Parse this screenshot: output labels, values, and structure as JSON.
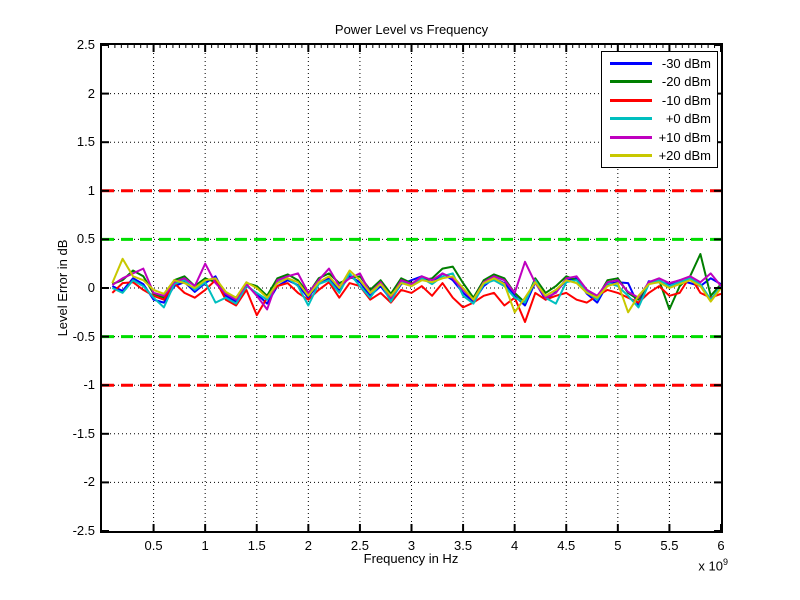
{
  "figure": {
    "title": "Power Level vs Frequency",
    "xlabel": "Frequency in Hz",
    "ylabel": "Level Error in dB",
    "x_exponent_prefix": "x 10",
    "x_exponent_power": "9",
    "background": "#ffffff",
    "axis_color": "#000000",
    "grid_style": "dotted"
  },
  "chart_data": {
    "type": "line",
    "title": "Power Level vs Frequency",
    "xlabel": "Frequency in Hz",
    "ylabel": "Level Error in dB",
    "x_unit": "Hz",
    "x_scale_exponent": 9,
    "xlim_ghz": [
      0,
      6
    ],
    "ylim_db": [
      -2.5,
      2.5
    ],
    "grid": "on-dotted",
    "legend_position": "northeast",
    "xticks_ghz": [
      0.5,
      1,
      1.5,
      2,
      2.5,
      3,
      3.5,
      4,
      4.5,
      5,
      5.5,
      6
    ],
    "xtick_labels": [
      "0.5",
      "1",
      "1.5",
      "2",
      "2.5",
      "3",
      "3.5",
      "4",
      "4.5",
      "5",
      "5.5",
      "6"
    ],
    "yticks_db": [
      2.5,
      2,
      1.5,
      1,
      0.5,
      0,
      -0.5,
      -1,
      -1.5,
      -2,
      -2.5
    ],
    "ytick_labels": [
      "2.5",
      "2",
      "1.5",
      "1",
      "0.5",
      "0",
      "-0.5",
      "-1",
      "-1.5",
      "-2",
      "-2.5"
    ],
    "limit_lines": [
      {
        "name": "upper-fail-limit",
        "y_db": 1.0,
        "color": "#ff0000",
        "style": "dashed"
      },
      {
        "name": "upper-warn-limit",
        "y_db": 0.5,
        "color": "#00dd00",
        "style": "dashed"
      },
      {
        "name": "lower-warn-limit",
        "y_db": -0.5,
        "color": "#00dd00",
        "style": "dashed"
      },
      {
        "name": "lower-fail-limit",
        "y_db": -1.0,
        "color": "#ff0000",
        "style": "dashed"
      }
    ],
    "x_start_ghz": 0.1,
    "x_step_ghz": 0.1,
    "series": [
      {
        "name": "-30 dBm",
        "color": "#0000ff",
        "values_db": [
          0.02,
          -0.03,
          0.1,
          0.04,
          -0.12,
          -0.15,
          0.02,
          0.06,
          -0.04,
          0.05,
          0.12,
          -0.08,
          -0.14,
          0.03,
          -0.06,
          -0.16,
          0.02,
          0.08,
          0.03,
          -0.1,
          0.05,
          0.1,
          -0.02,
          0.12,
          0.06,
          -0.08,
          0.02,
          -0.12,
          0.04,
          0.08,
          0.12,
          0.05,
          0.15,
          0.08,
          -0.05,
          -0.14,
          0.02,
          0.1,
          0.05,
          -0.08,
          -0.18,
          0.06,
          -0.12,
          -0.04,
          0.08,
          0.1,
          -0.06,
          -0.15,
          0.04,
          0.06,
          0.05,
          -0.18,
          0.07,
          0.06,
          0.04,
          0.08,
          0.05,
          0.02,
          0.1,
          0.04
        ]
      },
      {
        "name": "-20 dBm",
        "color": "#007f00",
        "values_db": [
          0.04,
          0.08,
          0.18,
          0.12,
          -0.06,
          -0.1,
          0.08,
          0.12,
          0.02,
          0.1,
          0.06,
          -0.05,
          -0.1,
          0.05,
          0.02,
          -0.08,
          0.1,
          0.14,
          0.08,
          -0.06,
          0.1,
          0.15,
          0.05,
          0.1,
          0.12,
          -0.02,
          0.08,
          -0.06,
          0.1,
          0.05,
          0.08,
          0.1,
          0.2,
          0.22,
          0.05,
          -0.1,
          0.08,
          0.14,
          0.1,
          -0.05,
          -0.15,
          0.1,
          -0.05,
          0.02,
          0.12,
          0.08,
          -0.02,
          -0.1,
          0.08,
          0.1,
          -0.05,
          -0.12,
          0.05,
          0.08,
          -0.22,
          0.02,
          0.12,
          0.35,
          -0.08,
          0.04
        ]
      },
      {
        "name": "-10 dBm",
        "color": "#ff0000",
        "values_db": [
          -0.05,
          0.05,
          0.06,
          -0.02,
          -0.08,
          -0.12,
          0.05,
          -0.05,
          -0.1,
          -0.02,
          0.08,
          -0.12,
          -0.18,
          -0.02,
          -0.28,
          -0.1,
          0.02,
          0.05,
          -0.05,
          -0.12,
          -0.02,
          0.06,
          -0.1,
          0.05,
          0.02,
          -0.12,
          -0.05,
          -0.15,
          -0.02,
          -0.05,
          0.02,
          -0.08,
          0.05,
          -0.1,
          -0.2,
          -0.15,
          -0.08,
          -0.05,
          -0.18,
          -0.1,
          -0.35,
          -0.05,
          -0.12,
          -0.08,
          -0.05,
          -0.12,
          -0.15,
          -0.08,
          -0.02,
          -0.05,
          -0.1,
          -0.15,
          -0.05,
          0.02,
          -0.08,
          -0.05,
          0.12,
          -0.05,
          -0.1,
          -0.06
        ]
      },
      {
        "name": "+0 dBm",
        "color": "#00bfbf",
        "values_db": [
          0.0,
          -0.05,
          0.08,
          0.02,
          -0.1,
          -0.2,
          0.04,
          0.08,
          -0.02,
          0.06,
          -0.15,
          -0.1,
          -0.16,
          0.02,
          -0.05,
          -0.12,
          0.06,
          0.1,
          0.02,
          -0.18,
          0.04,
          0.08,
          -0.05,
          0.15,
          0.02,
          -0.1,
          0.05,
          -0.14,
          0.06,
          0.02,
          0.1,
          0.04,
          0.12,
          0.15,
          -0.08,
          -0.16,
          0.04,
          0.08,
          0.02,
          -0.1,
          -0.15,
          0.08,
          -0.1,
          -0.16,
          0.06,
          0.08,
          -0.04,
          -0.12,
          0.05,
          0.02,
          -0.08,
          -0.2,
          0.04,
          0.08,
          0.02,
          0.06,
          0.1,
          0.04,
          -0.12,
          0.02
        ]
      },
      {
        "name": "+10 dBm",
        "color": "#bf00bf",
        "values_db": [
          0.03,
          0.1,
          0.15,
          0.2,
          -0.05,
          -0.08,
          0.06,
          0.1,
          0.02,
          0.25,
          0.05,
          -0.06,
          -0.12,
          0.04,
          -0.08,
          -0.22,
          0.08,
          0.12,
          0.15,
          -0.05,
          0.08,
          0.2,
          0.02,
          0.1,
          0.15,
          -0.05,
          0.06,
          -0.1,
          0.08,
          0.04,
          0.12,
          0.08,
          0.15,
          0.1,
          -0.02,
          -0.12,
          0.06,
          0.12,
          0.08,
          -0.05,
          0.27,
          0.05,
          -0.1,
          -0.05,
          0.1,
          0.12,
          -0.02,
          -0.08,
          0.06,
          0.08,
          -0.04,
          -0.1,
          0.06,
          0.1,
          0.05,
          0.08,
          0.12,
          0.06,
          0.15,
          0.02
        ]
      },
      {
        "name": "+20 dBm",
        "color": "#c8c800",
        "values_db": [
          0.05,
          0.3,
          0.12,
          0.08,
          -0.02,
          -0.06,
          0.08,
          0.05,
          0.0,
          0.08,
          0.1,
          -0.04,
          -0.1,
          0.06,
          0.0,
          -0.1,
          0.05,
          0.1,
          0.06,
          -0.08,
          0.06,
          0.12,
          0.0,
          0.18,
          0.08,
          -0.05,
          0.04,
          -0.08,
          0.05,
          0.02,
          0.08,
          0.06,
          0.1,
          0.12,
          0.0,
          -0.12,
          0.05,
          0.1,
          0.04,
          -0.25,
          -0.1,
          0.06,
          -0.08,
          -0.02,
          0.08,
          0.05,
          -0.05,
          -0.1,
          0.02,
          0.05,
          -0.25,
          -0.08,
          0.04,
          0.06,
          0.0,
          0.04,
          0.08,
          0.02,
          -0.14,
          0.0
        ]
      }
    ]
  }
}
